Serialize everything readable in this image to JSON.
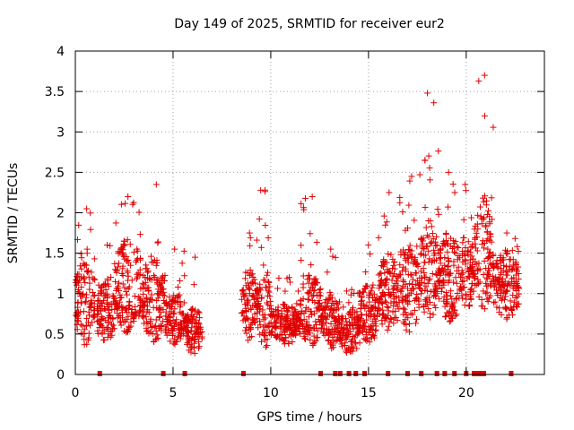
{
  "chart_data": {
    "type": "scatter",
    "title": "Day 149 of 2025, SRMTID for receiver eur2",
    "xlabel": "GPS time / hours",
    "ylabel": "SRMTID / TECUs",
    "xlim": [
      0,
      24
    ],
    "ylim": [
      0,
      4
    ],
    "xticks": [
      0,
      5,
      10,
      15,
      20
    ],
    "yticks": [
      0,
      0.5,
      1,
      1.5,
      2,
      2.5,
      3,
      3.5,
      4
    ],
    "grid": true,
    "marker": "+",
    "color": "#e00000",
    "segments": [
      {
        "start": 0.0,
        "end": 1.0,
        "base": 0.9,
        "amp": 0.55,
        "peak": 2.05
      },
      {
        "start": 1.1,
        "end": 2.0,
        "base": 0.75,
        "amp": 0.4,
        "peak": 1.6
      },
      {
        "start": 2.0,
        "end": 3.4,
        "base": 1.1,
        "amp": 0.6,
        "peak": 2.2
      },
      {
        "start": 3.4,
        "end": 4.6,
        "base": 0.95,
        "amp": 0.55,
        "peak": 2.35
      },
      {
        "start": 4.6,
        "end": 5.6,
        "base": 0.7,
        "amp": 0.35,
        "peak": 1.55
      },
      {
        "start": 5.6,
        "end": 6.5,
        "base": 0.55,
        "amp": 0.3,
        "peak": 1.45
      },
      {
        "start": 8.5,
        "end": 9.3,
        "base": 0.85,
        "amp": 0.45,
        "peak": 1.75
      },
      {
        "start": 9.3,
        "end": 10.0,
        "base": 0.8,
        "amp": 0.5,
        "peak": 2.28
      },
      {
        "start": 10.0,
        "end": 11.5,
        "base": 0.62,
        "amp": 0.25,
        "peak": 1.2
      },
      {
        "start": 11.5,
        "end": 12.6,
        "base": 0.8,
        "amp": 0.45,
        "peak": 2.2
      },
      {
        "start": 12.6,
        "end": 13.5,
        "base": 0.65,
        "amp": 0.35,
        "peak": 1.55
      },
      {
        "start": 13.5,
        "end": 14.6,
        "base": 0.55,
        "amp": 0.3,
        "peak": 1.05
      },
      {
        "start": 14.6,
        "end": 15.5,
        "base": 0.75,
        "amp": 0.4,
        "peak": 1.6
      },
      {
        "start": 15.5,
        "end": 16.6,
        "base": 1.0,
        "amp": 0.5,
        "peak": 2.25
      },
      {
        "start": 16.6,
        "end": 17.6,
        "base": 1.05,
        "amp": 0.55,
        "peak": 2.45
      },
      {
        "start": 17.6,
        "end": 18.6,
        "base": 1.3,
        "amp": 0.65,
        "peak": 3.48
      },
      {
        "start": 18.6,
        "end": 19.7,
        "base": 1.2,
        "amp": 0.6,
        "peak": 2.5
      },
      {
        "start": 19.7,
        "end": 20.4,
        "base": 1.3,
        "amp": 0.5,
        "peak": 2.35
      },
      {
        "start": 20.4,
        "end": 21.4,
        "base": 1.5,
        "amp": 0.75,
        "peak": 3.7
      },
      {
        "start": 21.4,
        "end": 22.7,
        "base": 1.1,
        "amp": 0.45,
        "peak": 1.75
      }
    ],
    "gap_markers_hours": [
      1.25,
      4.5,
      5.6,
      8.6,
      12.55,
      13.3,
      13.55,
      14.0,
      14.35,
      14.8,
      16.0,
      17.0,
      17.7,
      18.5,
      18.9,
      19.4,
      20.0,
      20.4,
      20.6,
      20.75,
      20.9,
      22.3
    ]
  }
}
